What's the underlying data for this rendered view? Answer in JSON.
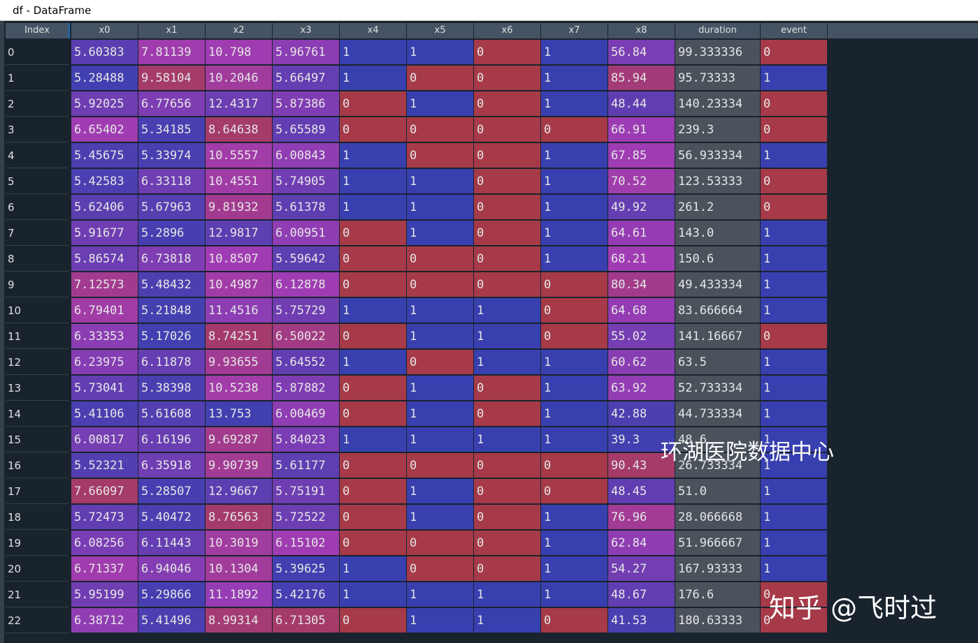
{
  "window": {
    "title": "df - DataFrame"
  },
  "table": {
    "index_header": "Index",
    "columns": [
      "x0",
      "x1",
      "x2",
      "x3",
      "x4",
      "x5",
      "x6",
      "x7",
      "x8",
      "duration",
      "event"
    ],
    "rows": [
      {
        "index": "0",
        "values": [
          "5.60383",
          "7.81139",
          "10.798",
          "5.96761",
          "1",
          "1",
          "0",
          "1",
          "56.84",
          "99.333336",
          "0"
        ]
      },
      {
        "index": "1",
        "values": [
          "5.28488",
          "9.58104",
          "10.2046",
          "5.66497",
          "1",
          "0",
          "0",
          "1",
          "85.94",
          "95.73333",
          "1"
        ]
      },
      {
        "index": "2",
        "values": [
          "5.92025",
          "6.77656",
          "12.4317",
          "5.87386",
          "0",
          "1",
          "0",
          "1",
          "48.44",
          "140.23334",
          "0"
        ]
      },
      {
        "index": "3",
        "values": [
          "6.65402",
          "5.34185",
          "8.64638",
          "5.65589",
          "0",
          "0",
          "0",
          "0",
          "66.91",
          "239.3",
          "0"
        ]
      },
      {
        "index": "4",
        "values": [
          "5.45675",
          "5.33974",
          "10.5557",
          "6.00843",
          "1",
          "0",
          "0",
          "1",
          "67.85",
          "56.933334",
          "1"
        ]
      },
      {
        "index": "5",
        "values": [
          "5.42583",
          "6.33118",
          "10.4551",
          "5.74905",
          "1",
          "1",
          "0",
          "1",
          "70.52",
          "123.53333",
          "0"
        ]
      },
      {
        "index": "6",
        "values": [
          "5.62406",
          "5.67963",
          "9.81932",
          "5.61378",
          "1",
          "1",
          "0",
          "1",
          "49.92",
          "261.2",
          "0"
        ]
      },
      {
        "index": "7",
        "values": [
          "5.91677",
          "5.2896",
          "12.9817",
          "6.00951",
          "0",
          "1",
          "0",
          "1",
          "64.61",
          "143.0",
          "1"
        ]
      },
      {
        "index": "8",
        "values": [
          "5.86574",
          "6.73818",
          "10.8507",
          "5.59642",
          "0",
          "0",
          "0",
          "1",
          "68.21",
          "150.6",
          "1"
        ]
      },
      {
        "index": "9",
        "values": [
          "7.12573",
          "5.48432",
          "10.4987",
          "6.12878",
          "0",
          "0",
          "0",
          "0",
          "80.34",
          "49.433334",
          "1"
        ]
      },
      {
        "index": "10",
        "values": [
          "6.79401",
          "5.21848",
          "11.4516",
          "5.75729",
          "1",
          "1",
          "1",
          "0",
          "64.68",
          "83.666664",
          "1"
        ]
      },
      {
        "index": "11",
        "values": [
          "6.33353",
          "5.17026",
          "8.74251",
          "6.50022",
          "0",
          "1",
          "1",
          "0",
          "55.02",
          "141.16667",
          "0"
        ]
      },
      {
        "index": "12",
        "values": [
          "6.23975",
          "6.11878",
          "9.93655",
          "5.64552",
          "1",
          "0",
          "1",
          "1",
          "60.62",
          "63.5",
          "1"
        ]
      },
      {
        "index": "13",
        "values": [
          "5.73041",
          "5.38398",
          "10.5238",
          "5.87882",
          "0",
          "1",
          "0",
          "1",
          "63.92",
          "52.733334",
          "1"
        ]
      },
      {
        "index": "14",
        "values": [
          "5.41106",
          "5.61608",
          "13.753",
          "6.00469",
          "0",
          "1",
          "0",
          "1",
          "42.88",
          "44.733334",
          "1"
        ]
      },
      {
        "index": "15",
        "values": [
          "6.00817",
          "6.16196",
          "9.69287",
          "5.84023",
          "1",
          "1",
          "1",
          "1",
          "39.3",
          "48.6",
          "1"
        ]
      },
      {
        "index": "16",
        "values": [
          "5.52321",
          "6.35918",
          "9.90739",
          "5.61177",
          "0",
          "0",
          "0",
          "0",
          "90.43",
          "26.733334",
          "1"
        ]
      },
      {
        "index": "17",
        "values": [
          "7.66097",
          "5.28507",
          "12.9667",
          "5.75191",
          "0",
          "1",
          "0",
          "0",
          "48.45",
          "51.0",
          "1"
        ]
      },
      {
        "index": "18",
        "values": [
          "5.72473",
          "5.40472",
          "8.76563",
          "5.72522",
          "0",
          "1",
          "0",
          "1",
          "76.96",
          "28.066668",
          "1"
        ]
      },
      {
        "index": "19",
        "values": [
          "6.08256",
          "6.11443",
          "10.3019",
          "6.15102",
          "0",
          "0",
          "0",
          "1",
          "62.84",
          "51.966667",
          "1"
        ]
      },
      {
        "index": "20",
        "values": [
          "6.71337",
          "6.94046",
          "10.1304",
          "5.39625",
          "1",
          "0",
          "0",
          "1",
          "54.27",
          "167.93333",
          "1"
        ]
      },
      {
        "index": "21",
        "values": [
          "5.95199",
          "5.29866",
          "11.1892",
          "5.42176",
          "1",
          "1",
          "1",
          "1",
          "48.67",
          "176.6",
          "0"
        ]
      },
      {
        "index": "22",
        "values": [
          "6.38712",
          "5.41496",
          "8.99314",
          "6.71305",
          "0",
          "1",
          "1",
          "0",
          "41.53",
          "180.63333",
          "0"
        ]
      }
    ]
  },
  "colors": {
    "gray_column": "#4a535c"
  },
  "watermarks": {
    "center": "环湖医院数据中心",
    "bottom_right": "知乎 @飞时过"
  }
}
